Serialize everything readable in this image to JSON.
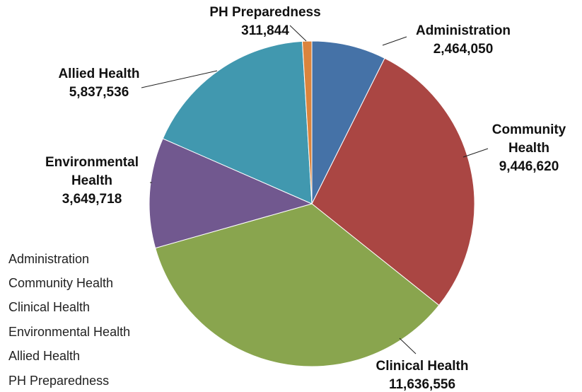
{
  "chart_data": {
    "type": "pie",
    "categories": [
      "Administration",
      "Community Health",
      "Clinical Health",
      "Environmental Health",
      "Allied Health",
      "PH Preparedness"
    ],
    "values": [
      2464050,
      9446620,
      11636556,
      3649718,
      5837536,
      311844
    ],
    "value_labels": [
      "2,464,050",
      "9,446,620",
      "11,636,556",
      "3,649,718",
      "5,837,536",
      "311,844"
    ],
    "colors": [
      "#4572a7",
      "#aa4643",
      "#89a54e",
      "#71588f",
      "#4198af",
      "#db843d"
    ],
    "legend": "bottom-left"
  }
}
